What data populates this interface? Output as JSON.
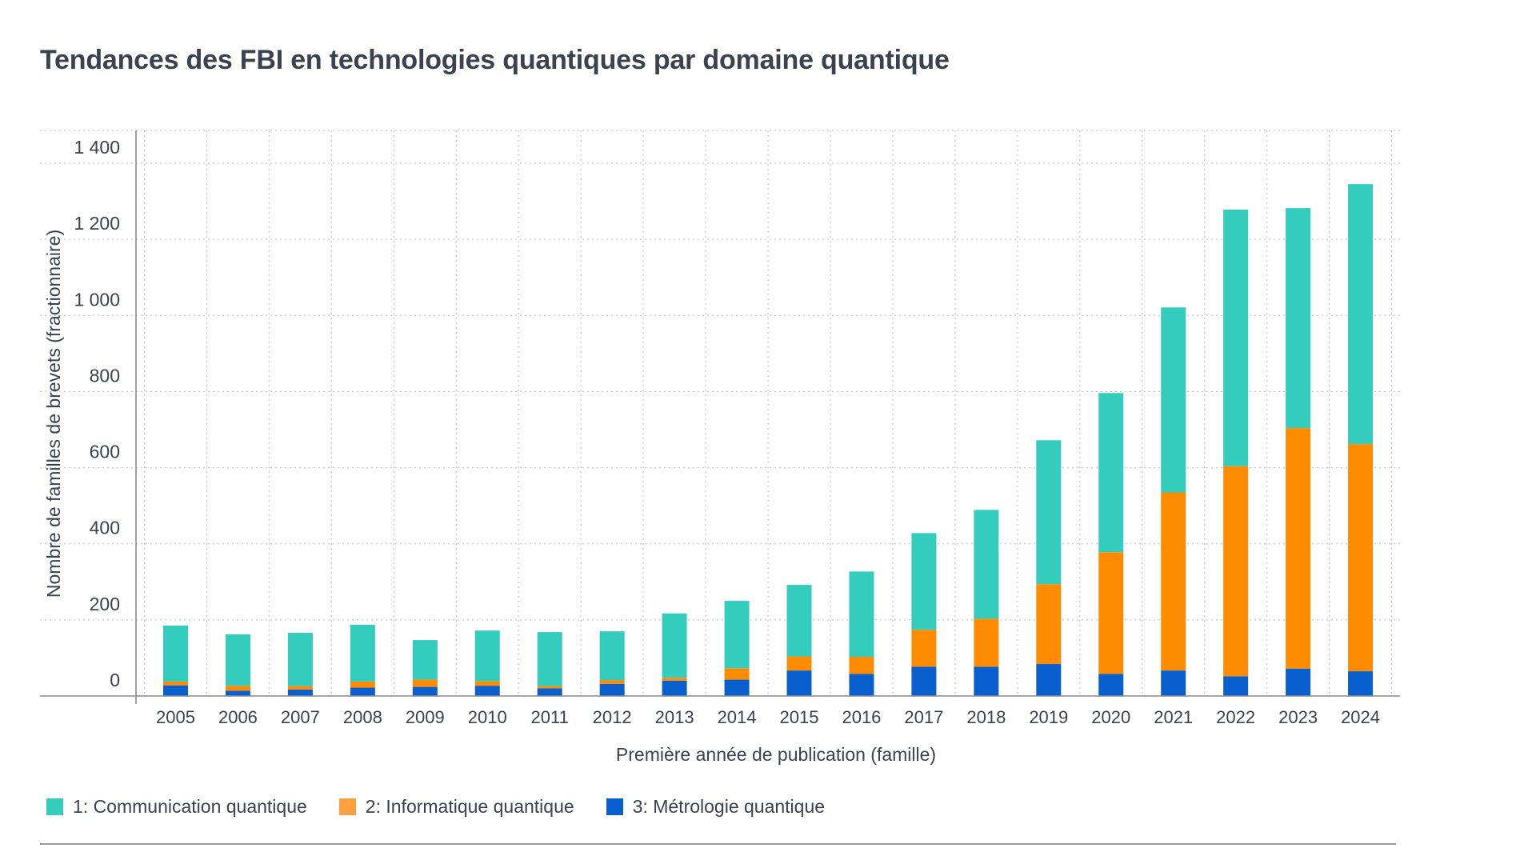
{
  "chart_data": {
    "type": "bar",
    "stacked": true,
    "title": "Tendances des FBI en technologies quantiques par domaine quantique",
    "xlabel": "Première année de publication (famille)",
    "ylabel": "Nombre de familles de brevets (fractionnaire)",
    "ylim": [
      0,
      1480
    ],
    "yticks": [
      0,
      200,
      400,
      600,
      800,
      1000,
      1200,
      1400
    ],
    "ytick_labels": [
      "0",
      "200",
      "400",
      "600",
      "800",
      "1 000",
      "1 200",
      "1 400"
    ],
    "grid": true,
    "legend_position": "bottom-left",
    "categories": [
      "2005",
      "2006",
      "2007",
      "2008",
      "2009",
      "2010",
      "2011",
      "2012",
      "2013",
      "2014",
      "2015",
      "2016",
      "2017",
      "2018",
      "2019",
      "2020",
      "2021",
      "2022",
      "2023",
      "2024"
    ],
    "series": [
      {
        "name": "3: Métrologie quantique",
        "color": "#0a5fcf",
        "values": [
          28,
          14,
          17,
          22,
          24,
          27,
          20,
          32,
          40,
          43,
          67,
          58,
          77,
          77,
          84,
          58,
          67,
          52,
          72,
          65
        ]
      },
      {
        "name": "2: Informatique quantique",
        "color": "#ff8c00",
        "values": [
          10,
          13,
          9,
          16,
          19,
          12,
          6,
          10,
          8,
          30,
          37,
          45,
          97,
          126,
          210,
          320,
          468,
          552,
          632,
          597
        ]
      },
      {
        "name": "1: Communication quantique",
        "color": "#33ccbd",
        "values": [
          147,
          135,
          140,
          149,
          104,
          133,
          142,
          128,
          169,
          177,
          188,
          224,
          254,
          286,
          378,
          418,
          486,
          674,
          578,
          683
        ]
      }
    ]
  },
  "legend": {
    "items": [
      {
        "label": "1: Communication quantique",
        "color": "#33ccbd"
      },
      {
        "label": "2: Informatique quantique",
        "color": "#ffa040"
      },
      {
        "label": "3: Métrologie quantique",
        "color": "#0a5fcf"
      }
    ]
  }
}
